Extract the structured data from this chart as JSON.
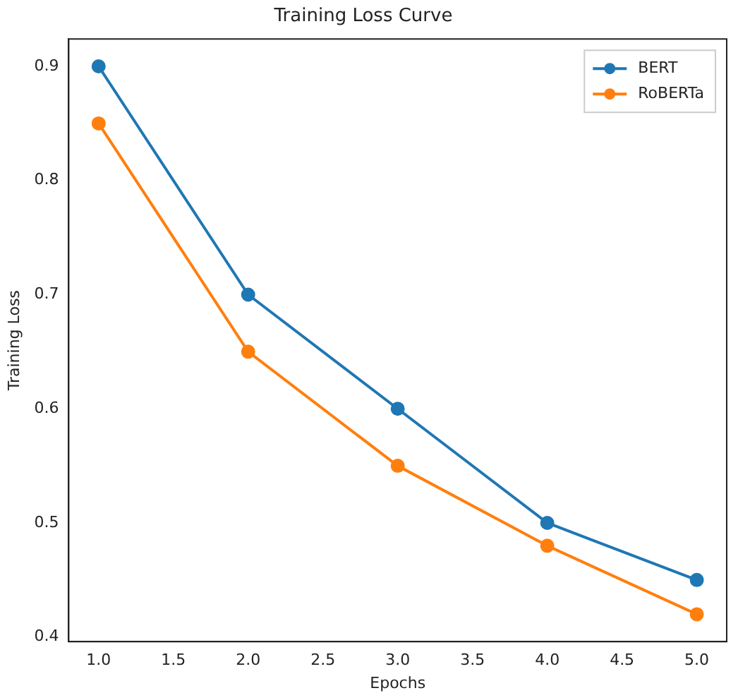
{
  "chart_data": {
    "type": "line",
    "title": "Training Loss Curve",
    "xlabel": "Epochs",
    "ylabel": "Training Loss",
    "x": [
      1,
      2,
      3,
      4,
      5
    ],
    "series": [
      {
        "name": "BERT",
        "color": "#1f77b4",
        "values": [
          0.9,
          0.7,
          0.6,
          0.5,
          0.45
        ]
      },
      {
        "name": "RoBERTa",
        "color": "#ff7f0e",
        "values": [
          0.85,
          0.65,
          0.55,
          0.48,
          0.42
        ]
      }
    ],
    "xlim": [
      0.8,
      5.2
    ],
    "xticks": [
      {
        "value": 1,
        "label": "1.0"
      },
      {
        "value": 1.5,
        "label": "1.5"
      },
      {
        "value": 2,
        "label": "2.0"
      },
      {
        "value": 2.5,
        "label": "2.5"
      },
      {
        "value": 3,
        "label": "3.0"
      },
      {
        "value": 3.5,
        "label": "3.5"
      },
      {
        "value": 4,
        "label": "4.0"
      },
      {
        "value": 4.5,
        "label": "4.5"
      },
      {
        "value": 5,
        "label": "5.0"
      }
    ],
    "ylim": [
      0.396,
      0.924
    ],
    "yticks": [
      0.4,
      0.5,
      0.6,
      0.7,
      0.8,
      0.9
    ],
    "legend": "top right",
    "marker": "circle",
    "line_style": "solid",
    "grid": false
  }
}
